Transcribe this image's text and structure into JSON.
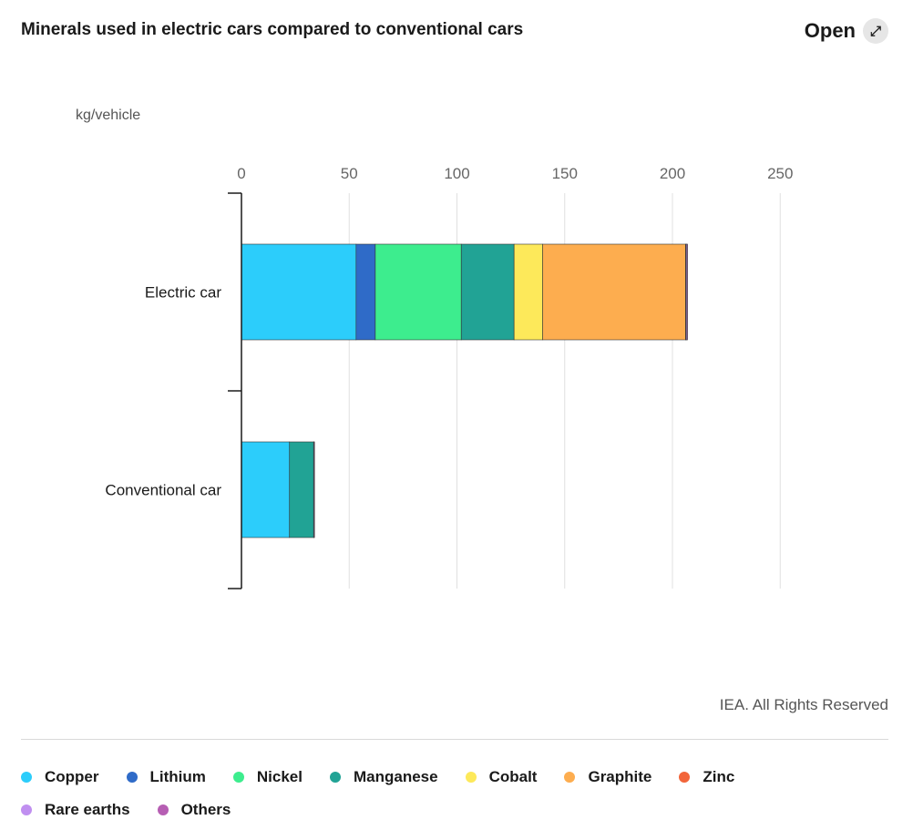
{
  "header": {
    "title": "Minerals used in electric cars compared to conventional cars",
    "open_label": "Open",
    "open_icon": "expand-icon"
  },
  "footer": {
    "credit": "IEA. All Rights Reserved"
  },
  "chart_data": {
    "type": "bar",
    "orientation": "horizontal",
    "stacked": true,
    "unit": "kg/vehicle",
    "categories": [
      "Electric car",
      "Conventional car"
    ],
    "xlim": [
      0,
      250
    ],
    "xticks": [
      "0",
      "50",
      "100",
      "150",
      "200",
      "250"
    ],
    "grid": true,
    "legend_position": "bottom",
    "series": [
      {
        "name": "Copper",
        "color": "#2ccdfb",
        "values": [
          53.2,
          22.3
        ]
      },
      {
        "name": "Lithium",
        "color": "#2f6bc8",
        "values": [
          8.9,
          0
        ]
      },
      {
        "name": "Nickel",
        "color": "#3ded8e",
        "values": [
          39.9,
          0
        ]
      },
      {
        "name": "Manganese",
        "color": "#21a395",
        "values": [
          24.5,
          11.2
        ]
      },
      {
        "name": "Cobalt",
        "color": "#fde95a",
        "values": [
          13.3,
          0
        ]
      },
      {
        "name": "Graphite",
        "color": "#fdad4f",
        "values": [
          66.3,
          0
        ]
      },
      {
        "name": "Zinc",
        "color": "#f2653a",
        "values": [
          0.1,
          0.1
        ]
      },
      {
        "name": "Rare earths",
        "color": "#c08ff0",
        "values": [
          0.5,
          0
        ]
      },
      {
        "name": "Others",
        "color": "#b65eb3",
        "values": [
          0.3,
          0.3
        ]
      }
    ]
  }
}
